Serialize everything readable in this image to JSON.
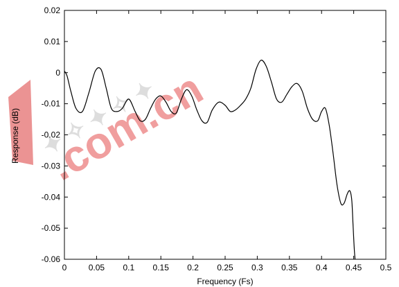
{
  "chart_data": {
    "type": "line",
    "title": "",
    "xlabel": "Frequency (Fs)",
    "ylabel": "Response (dB)",
    "xlim": [
      0,
      0.5
    ],
    "ylim": [
      -0.06,
      0.02
    ],
    "grid": false,
    "x_ticks": [
      "0",
      "0.05",
      "0.1",
      "0.15",
      "0.2",
      "0.25",
      "0.3",
      "0.35",
      "0.4",
      "0.45",
      "0.5"
    ],
    "y_ticks": [
      "0.02",
      "0.01",
      "0",
      "-0.01",
      "-0.02",
      "-0.03",
      "-0.04",
      "-0.05",
      "-0.06"
    ],
    "series": [
      {
        "color": "#000000",
        "x": [
          0,
          0.004,
          0.01,
          0.018,
          0.028,
          0.038,
          0.048,
          0.057,
          0.065,
          0.073,
          0.082,
          0.09,
          0.1,
          0.11,
          0.118,
          0.126,
          0.134,
          0.142,
          0.15,
          0.158,
          0.166,
          0.174,
          0.182,
          0.19,
          0.198,
          0.206,
          0.214,
          0.222,
          0.23,
          0.24,
          0.25,
          0.258,
          0.266,
          0.274,
          0.282,
          0.29,
          0.298,
          0.306,
          0.314,
          0.322,
          0.33,
          0.338,
          0.346,
          0.354,
          0.362,
          0.37,
          0.378,
          0.386,
          0.394,
          0.4,
          0.406,
          0.412,
          0.418,
          0.424,
          0.43,
          0.435,
          0.44,
          0.444,
          0.447,
          0.449,
          0.451,
          0.453
        ],
        "values": [
          0.0005,
          -0.001,
          -0.006,
          -0.0115,
          -0.0125,
          -0.0065,
          0.0005,
          0.001,
          -0.005,
          -0.0115,
          -0.0125,
          -0.0115,
          -0.0085,
          -0.0125,
          -0.0155,
          -0.015,
          -0.0115,
          -0.0085,
          -0.0075,
          -0.0095,
          -0.0125,
          -0.013,
          -0.0085,
          -0.0055,
          -0.0075,
          -0.012,
          -0.0155,
          -0.016,
          -0.012,
          -0.0095,
          -0.0105,
          -0.0125,
          -0.012,
          -0.0105,
          -0.0085,
          -0.005,
          0.001,
          0.004,
          0.002,
          -0.003,
          -0.0085,
          -0.0095,
          -0.007,
          -0.0045,
          -0.0035,
          -0.006,
          -0.0115,
          -0.015,
          -0.0155,
          -0.0125,
          -0.0115,
          -0.017,
          -0.026,
          -0.036,
          -0.042,
          -0.042,
          -0.039,
          -0.038,
          -0.041,
          -0.049,
          -0.057,
          -0.062
        ]
      }
    ]
  }
}
